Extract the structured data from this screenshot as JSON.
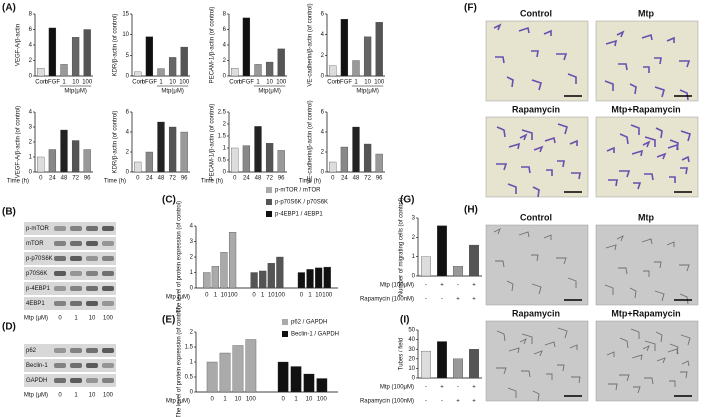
{
  "figure": {
    "panel_labels": [
      "(A)",
      "(B)",
      "(C)",
      "(D)",
      "(E)",
      "(F)",
      "(G)",
      "(H)",
      "(I)"
    ],
    "blot_B": {
      "rows": [
        "p-mTOR",
        "mTOR",
        "p-p70S6K",
        "p70S6K",
        "p-4EBP1",
        "4EBP1"
      ],
      "treatment": "Mtp (μM)",
      "lanes": [
        "0",
        "1",
        "10",
        "100"
      ]
    },
    "blot_D": {
      "rows": [
        "p62",
        "Beclin-1",
        "GAPDH"
      ],
      "treatment": "Mtp (μM)",
      "lanes": [
        "0",
        "1",
        "10",
        "100"
      ]
    },
    "images_F": [
      "Control",
      "Mtp",
      "Rapamycin",
      "Mtp+Rapamycin"
    ],
    "images_H": [
      "Control",
      "Mtp",
      "Rapamycin",
      "Mtp+Rapamycin"
    ]
  },
  "chart_data": [
    {
      "type": "bar",
      "y_label": "VEGF-A/β-actin",
      "categories": [
        "Con",
        "bFGF",
        "1",
        "10",
        "100"
      ],
      "group_label": "Mtp(μM)",
      "values": [
        1,
        6.2,
        1.5,
        5,
        6
      ],
      "colors": [
        "#dddddd",
        "#111111",
        "#999999",
        "#666666",
        "#555555"
      ],
      "ylim": [
        0,
        8
      ],
      "yticks": [
        0,
        2,
        4,
        6,
        8
      ]
    },
    {
      "type": "bar",
      "y_label": "KDR/β-actin (of control)",
      "categories": [
        "Con",
        "bFGF",
        "1",
        "10",
        "100"
      ],
      "group_label": "Mtp(μM)",
      "values": [
        1,
        9.5,
        1.8,
        4.5,
        7
      ],
      "colors": [
        "#dddddd",
        "#111111",
        "#999999",
        "#666666",
        "#555555"
      ],
      "ylim": [
        0,
        15
      ],
      "yticks": [
        0,
        5,
        10,
        15
      ]
    },
    {
      "type": "bar",
      "y_label": "PECAM-1/β-actin (of control)",
      "categories": [
        "Con",
        "bFGF",
        "1",
        "10",
        "100"
      ],
      "group_label": "Mtp(μM)",
      "values": [
        1,
        7.5,
        1.5,
        1.8,
        3.5
      ],
      "colors": [
        "#dddddd",
        "#111111",
        "#999999",
        "#666666",
        "#555555"
      ],
      "ylim": [
        0,
        8
      ],
      "yticks": [
        0,
        2,
        4,
        6,
        8
      ]
    },
    {
      "type": "bar",
      "y_label": "VE-cadherin/β-actin (of control)",
      "categories": [
        "Con",
        "bFGF",
        "1",
        "10",
        "100"
      ],
      "group_label": "Mtp(μM)",
      "values": [
        1,
        5.5,
        1.5,
        3.8,
        5.2
      ],
      "colors": [
        "#dddddd",
        "#111111",
        "#999999",
        "#666666",
        "#555555"
      ],
      "ylim": [
        0,
        6
      ],
      "yticks": [
        0,
        2,
        4,
        6
      ]
    },
    {
      "type": "bar",
      "y_label": "VEGF-A/β-actin (of control)",
      "x_label": "Time (h)",
      "categories": [
        "0",
        "24",
        "48",
        "72",
        "96"
      ],
      "values": [
        1,
        1.5,
        2.8,
        2.1,
        1.5
      ],
      "colors": [
        "#dddddd",
        "#888888",
        "#222222",
        "#555555",
        "#999999"
      ],
      "ylim": [
        0,
        4
      ],
      "yticks": [
        0,
        1,
        2,
        3,
        4
      ]
    },
    {
      "type": "bar",
      "y_label": "KDR/β-actin (of control)",
      "x_label": "Time (h)",
      "categories": [
        "0",
        "24",
        "48",
        "72",
        "96"
      ],
      "values": [
        1,
        2,
        5,
        4.5,
        4
      ],
      "colors": [
        "#dddddd",
        "#888888",
        "#222222",
        "#555555",
        "#999999"
      ],
      "ylim": [
        0,
        6
      ],
      "yticks": [
        0,
        2,
        4,
        6
      ]
    },
    {
      "type": "bar",
      "y_label": "PECAM-1/β-actin (of control)",
      "x_label": "Time (h)",
      "categories": [
        "0",
        "24",
        "48",
        "72",
        "96"
      ],
      "values": [
        1,
        1.1,
        1.9,
        1.2,
        0.9
      ],
      "colors": [
        "#dddddd",
        "#888888",
        "#222222",
        "#555555",
        "#999999"
      ],
      "ylim": [
        0,
        2.5
      ],
      "yticks": [
        0,
        0.5,
        1,
        1.5,
        2,
        2.5
      ]
    },
    {
      "type": "bar",
      "y_label": "VE-cadherin/β-actin (of control)",
      "x_label": "Time (h)",
      "categories": [
        "0",
        "24",
        "48",
        "72",
        "96"
      ],
      "values": [
        1,
        2.5,
        4.5,
        2.8,
        1.8
      ],
      "colors": [
        "#dddddd",
        "#888888",
        "#222222",
        "#555555",
        "#999999"
      ],
      "ylim": [
        0,
        6
      ],
      "yticks": [
        0,
        2,
        4,
        6
      ]
    },
    {
      "type": "grouped_bar",
      "y_label": "The level of protein expression (of control)",
      "x_label": "Mtp (μM)",
      "categories": [
        "0",
        "1",
        "10",
        "100"
      ],
      "series": [
        {
          "name": "p-mTOR / mTOR",
          "color": "#aaaaaa",
          "values": [
            1,
            1.4,
            2.3,
            3.6
          ]
        },
        {
          "name": "p-p70S6K / p70S6K",
          "color": "#555555",
          "values": [
            1,
            1.1,
            1.6,
            2
          ]
        },
        {
          "name": "p-4EBP1 / 4EBP1",
          "color": "#111111",
          "values": [
            1,
            1.2,
            1.3,
            1.35
          ]
        }
      ],
      "ylim": [
        0,
        4
      ],
      "yticks": [
        0,
        1,
        2,
        3,
        4
      ]
    },
    {
      "type": "grouped_bar",
      "y_label": "The level of protein expression (of control)",
      "x_label": "Mtp (μM)",
      "categories": [
        "0",
        "1",
        "10",
        "100"
      ],
      "series": [
        {
          "name": "p62 / GAPDH",
          "color": "#aaaaaa",
          "values": [
            1,
            1.3,
            1.55,
            1.75
          ]
        },
        {
          "name": "Beclin-1 / GAPDH",
          "color": "#111111",
          "values": [
            1,
            0.85,
            0.6,
            0.45
          ]
        }
      ],
      "ylim": [
        0,
        2
      ],
      "yticks": [
        0,
        0.5,
        1,
        1.5,
        2
      ]
    },
    {
      "type": "bar",
      "y_label": "Number of migrating cells (of control)",
      "values": [
        1,
        2.6,
        0.5,
        1.6
      ],
      "colors": [
        "#dddddd",
        "#111111",
        "#999999",
        "#555555"
      ],
      "conditions": [
        {
          "name": "Mtp (100μM)",
          "signs": [
            "-",
            "+",
            "-",
            "+"
          ]
        },
        {
          "name": "Rapamycin (100nM)",
          "signs": [
            "-",
            "-",
            "+",
            "+"
          ]
        }
      ],
      "ylim": [
        0,
        3
      ],
      "yticks": [
        0,
        1,
        2,
        3
      ]
    },
    {
      "type": "bar",
      "y_label": "Tubes / field",
      "values": [
        28,
        38,
        20,
        30
      ],
      "colors": [
        "#dddddd",
        "#111111",
        "#999999",
        "#555555"
      ],
      "conditions": [
        {
          "name": "Mtp (100μM)",
          "signs": [
            "-",
            "+",
            "-",
            "+"
          ]
        },
        {
          "name": "Rapamycin (100nM)",
          "signs": [
            "-",
            "-",
            "+",
            "+"
          ]
        }
      ],
      "ylim": [
        0,
        50
      ],
      "yticks": [
        0,
        10,
        20,
        30,
        40,
        50
      ]
    }
  ]
}
